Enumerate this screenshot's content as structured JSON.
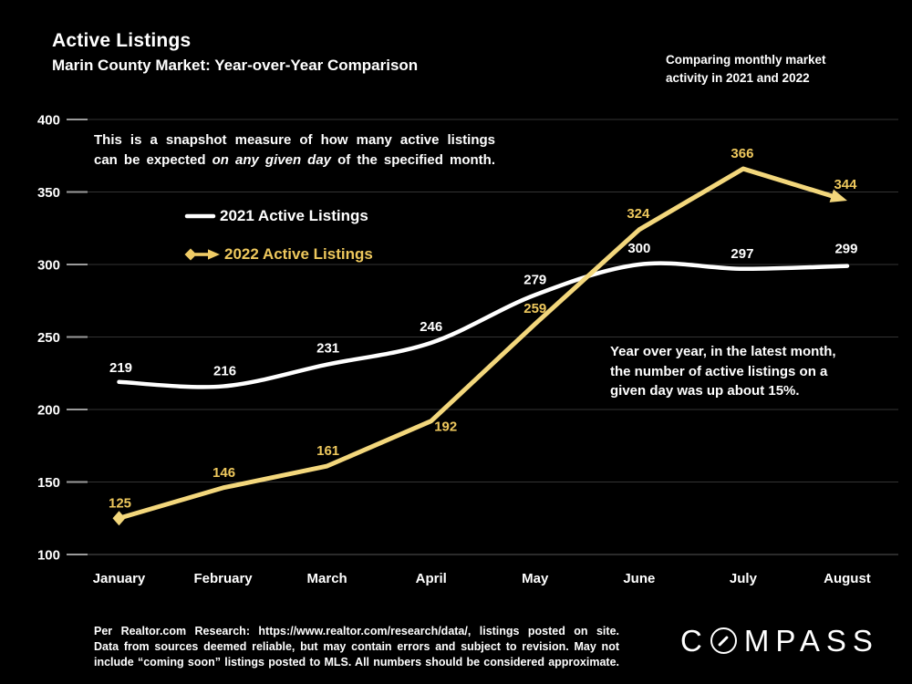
{
  "header": {
    "title": "Active Listings",
    "subtitle": "Marin County Market: Year-over-Year Comparison",
    "note": "Comparing monthly market\nactivity in 2021 and 2022"
  },
  "annotations": {
    "snapshot_line1": "This is a snapshot measure of how many active listings",
    "snapshot_pre": "can be expected ",
    "snapshot_italic": "on any given day",
    "snapshot_post": " of the specified month.",
    "yoy": "Year over year, in the latest month,\nthe number of active listings on a\ngiven day was up about 15%."
  },
  "legend": [
    {
      "label": "2021 Active Listings",
      "color": "#ffffff",
      "marker": "line"
    },
    {
      "label": "2022 Active Listings",
      "color": "#eec85d",
      "marker": "diamond-arrow"
    }
  ],
  "chart_data": {
    "type": "line",
    "title": "Active Listings",
    "categories": [
      "January",
      "February",
      "March",
      "April",
      "May",
      "June",
      "July",
      "August"
    ],
    "series": [
      {
        "name": "2021 Active Listings",
        "color": "#ffffff",
        "label_color": "#ffffff",
        "values": [
          219,
          216,
          231,
          246,
          279,
          300,
          297,
          299
        ]
      },
      {
        "name": "2022 Active Listings",
        "color": "#f3d77c",
        "label_color": "#eec85d",
        "values": [
          125,
          146,
          161,
          192,
          259,
          324,
          366,
          344
        ]
      }
    ],
    "ylim": [
      100,
      400
    ],
    "yticks": [
      100,
      150,
      200,
      250,
      300,
      350,
      400
    ],
    "grid": "horizontal",
    "grid_color": "#333333",
    "tick_color": "#9b9b9b",
    "legend_position": "upper-left-inside",
    "background": "#000000"
  },
  "footer": {
    "lines": [
      "Per Realtor.com Research:  https://www.realtor.com/research/data/, listings posted on site.",
      "Data from sources deemed reliable, but may contain errors and subject to revision. May not",
      "include “coming soon” listings posted to MLS. All numbers should be considered approximate."
    ],
    "brand_name": "COMPASS",
    "brand_c": "C",
    "brand_rest": "MPASS"
  }
}
